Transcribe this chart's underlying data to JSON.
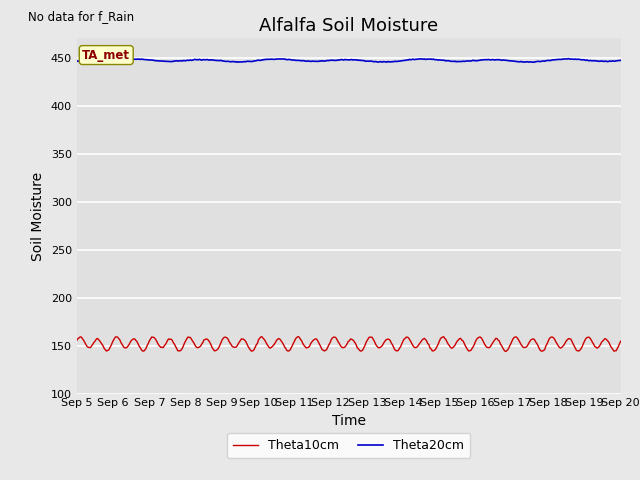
{
  "title": "Alfalfa Soil Moisture",
  "xlabel": "Time",
  "ylabel": "Soil Moisture",
  "no_data_label": "No data for f_Rain",
  "ta_met_label": "TA_met",
  "ylim": [
    100,
    470
  ],
  "yticks": [
    100,
    150,
    200,
    250,
    300,
    350,
    400,
    450
  ],
  "x_tick_labels": [
    "Sep 5",
    "Sep 6",
    "Sep 7",
    "Sep 8",
    "Sep 9",
    "Sep 10",
    "Sep 11",
    "Sep 12",
    "Sep 13",
    "Sep 14",
    "Sep 15",
    "Sep 16",
    "Sep 17",
    "Sep 18",
    "Sep 19",
    "Sep 20"
  ],
  "theta10_color": "#cc0000",
  "theta20_color": "#0000cc",
  "theta10_label": "Theta10cm",
  "theta20_label": "Theta20cm",
  "bg_color": "#e8e8e8",
  "plot_bg_color": "#e0e0e0",
  "theta10_base": 152,
  "theta10_amp": 6,
  "theta20_base": 447,
  "theta20_amp": 2.5,
  "n_points": 480,
  "title_fontsize": 13,
  "axis_label_fontsize": 10,
  "tick_fontsize": 8
}
